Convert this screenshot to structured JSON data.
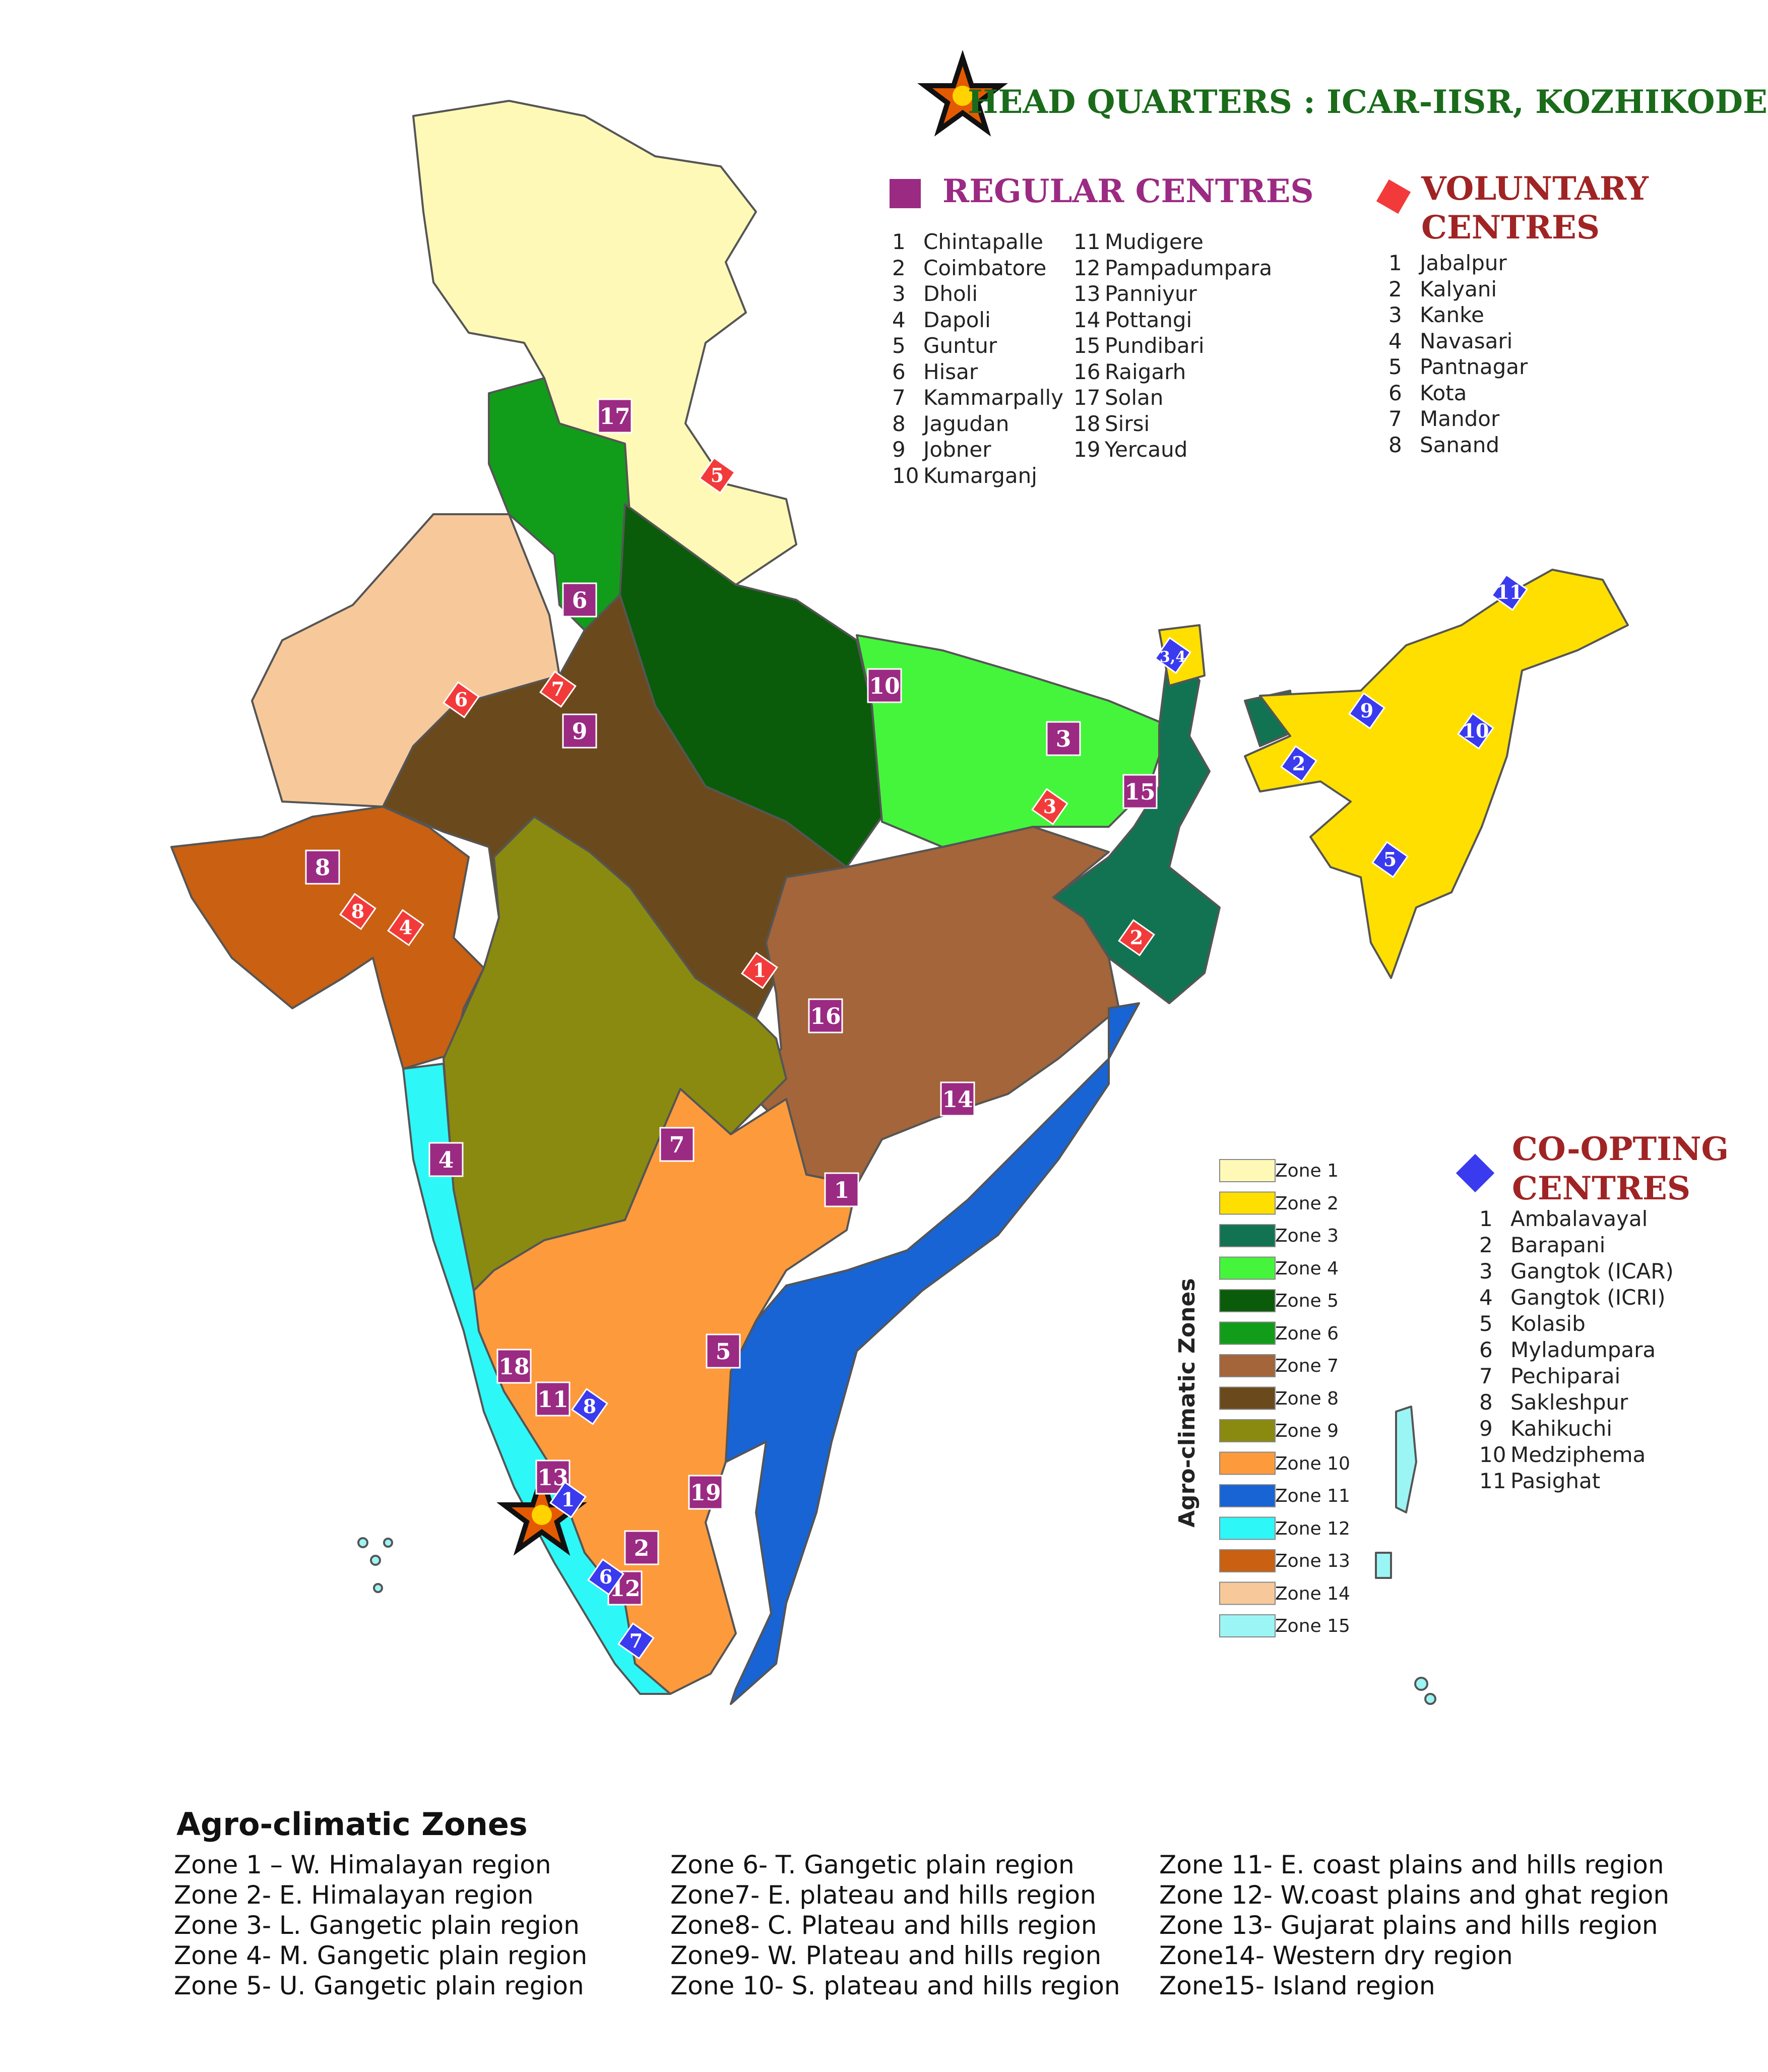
{
  "headquarters": {
    "label": "HEAD QUARTERS : ICAR-IISR, KOZHIKODE"
  },
  "regular_centres": {
    "title": "REGULAR CENTRES",
    "items": [
      {
        "num": "1",
        "name": "Chintapalle"
      },
      {
        "num": "2",
        "name": "Coimbatore"
      },
      {
        "num": "3",
        "name": "Dholi"
      },
      {
        "num": "4",
        "name": "Dapoli"
      },
      {
        "num": "5",
        "name": "Guntur"
      },
      {
        "num": "6",
        "name": "Hisar"
      },
      {
        "num": "7",
        "name": "Kammarpally"
      },
      {
        "num": "8",
        "name": "Jagudan"
      },
      {
        "num": "9",
        "name": "Jobner"
      },
      {
        "num": "10",
        "name": "Kumarganj"
      },
      {
        "num": "11",
        "name": "Mudigere"
      },
      {
        "num": "12",
        "name": "Pampadumpara"
      },
      {
        "num": "13",
        "name": "Panniyur"
      },
      {
        "num": "14",
        "name": "Pottangi"
      },
      {
        "num": "15",
        "name": "Pundibari"
      },
      {
        "num": "16",
        "name": "Raigarh"
      },
      {
        "num": "17",
        "name": "Solan"
      },
      {
        "num": "18",
        "name": "Sirsi"
      },
      {
        "num": "19",
        "name": "Yercaud"
      }
    ]
  },
  "voluntary_centres": {
    "title_line1": "VOLUNTARY",
    "title_line2": "CENTRES",
    "items": [
      {
        "num": "1",
        "name": "Jabalpur"
      },
      {
        "num": "2",
        "name": "Kalyani"
      },
      {
        "num": "3",
        "name": "Kanke"
      },
      {
        "num": "4",
        "name": "Navasari"
      },
      {
        "num": "5",
        "name": "Pantnagar"
      },
      {
        "num": "6",
        "name": "Kota"
      },
      {
        "num": "7",
        "name": "Mandor"
      },
      {
        "num": "8",
        "name": "Sanand"
      }
    ]
  },
  "coopting_centres": {
    "title_line1": "CO-OPTING",
    "title_line2": "CENTRES",
    "items": [
      {
        "num": "1",
        "name": "Ambalavayal"
      },
      {
        "num": "2",
        "name": "Barapani"
      },
      {
        "num": "3",
        "name": "Gangtok (ICAR)"
      },
      {
        "num": "4",
        "name": "Gangtok (ICRI)"
      },
      {
        "num": "5",
        "name": "Kolasib"
      },
      {
        "num": "6",
        "name": "Myladumpara"
      },
      {
        "num": "7",
        "name": "Pechiparai"
      },
      {
        "num": "8",
        "name": "Sakleshpur"
      },
      {
        "num": "9",
        "name": "Kahikuchi"
      },
      {
        "num": "10",
        "name": "Medziphema"
      },
      {
        "num": "11",
        "name": "Pasighat"
      }
    ]
  },
  "map_legend": {
    "title": "Agro-climatic Zones",
    "zones": [
      {
        "label": "Zone 1",
        "color": "#fff9b8"
      },
      {
        "label": "Zone 2",
        "color": "#ffdf00"
      },
      {
        "label": "Zone 3",
        "color": "#127352"
      },
      {
        "label": "Zone 4",
        "color": "#44f53c"
      },
      {
        "label": "Zone 5",
        "color": "#0a5c0a"
      },
      {
        "label": "Zone 6",
        "color": "#119d1a"
      },
      {
        "label": "Zone 7",
        "color": "#a36539"
      },
      {
        "label": "Zone 8",
        "color": "#6a4a1c"
      },
      {
        "label": "Zone 9",
        "color": "#8a8a10"
      },
      {
        "label": "Zone 10",
        "color": "#fd9a3c"
      },
      {
        "label": "Zone 11",
        "color": "#1864d4"
      },
      {
        "label": "Zone 12",
        "color": "#2ef7f7"
      },
      {
        "label": "Zone 13",
        "color": "#c96012"
      },
      {
        "label": "Zone 14",
        "color": "#f7c99a"
      },
      {
        "label": "Zone 15",
        "color": "#9cf5f5"
      }
    ]
  },
  "zone_descriptions": {
    "title": "Agro-climatic Zones",
    "col1": [
      "Zone 1 – W. Himalayan region",
      "Zone 2-  E. Himalayan region",
      "Zone 3- L. Gangetic plain region",
      "Zone 4- M. Gangetic plain region",
      "Zone 5- U. Gangetic plain region"
    ],
    "col2": [
      "Zone 6- T. Gangetic plain region",
      "Zone7- E. plateau and hills region",
      "Zone8- C. Plateau and hills region",
      "Zone9- W. Plateau and hills region",
      "Zone 10- S. plateau and hills region"
    ],
    "col3": [
      "Zone 11- E. coast plains and hills region",
      "Zone 12- W.coast plains and ghat region",
      "Zone 13- Gujarat plains and hills region",
      "Zone14- Western dry region",
      "Zone15- Island region"
    ]
  },
  "markers": {
    "regular": [
      {
        "label": "17"
      },
      {
        "label": "6"
      },
      {
        "label": "10"
      },
      {
        "label": "3"
      },
      {
        "label": "15"
      },
      {
        "label": "9"
      },
      {
        "label": "8"
      },
      {
        "label": "16"
      },
      {
        "label": "14"
      },
      {
        "label": "7"
      },
      {
        "label": "1"
      },
      {
        "label": "4"
      },
      {
        "label": "5"
      },
      {
        "label": "18"
      },
      {
        "label": "11"
      },
      {
        "label": "13"
      },
      {
        "label": "19"
      },
      {
        "label": "2"
      },
      {
        "label": "12"
      }
    ],
    "voluntary": [
      {
        "label": "5"
      },
      {
        "label": "6"
      },
      {
        "label": "7"
      },
      {
        "label": "3"
      },
      {
        "label": "8"
      },
      {
        "label": "4"
      },
      {
        "label": "1"
      },
      {
        "label": "2"
      }
    ],
    "coopting": [
      {
        "label": "11"
      },
      {
        "label": "3,4"
      },
      {
        "label": "9"
      },
      {
        "label": "10"
      },
      {
        "label": "2"
      },
      {
        "label": "5"
      },
      {
        "label": "8"
      },
      {
        "label": "1"
      },
      {
        "label": "6"
      },
      {
        "label": "7"
      }
    ]
  },
  "colors": {
    "regular_marker": "#9b2a83",
    "voluntary_marker": "#f33a3a",
    "coopting_marker": "#3a3aef",
    "hq_title": "#1a6b1a",
    "section_title": "#9b2a83",
    "voluntary_title": "#a02424"
  }
}
